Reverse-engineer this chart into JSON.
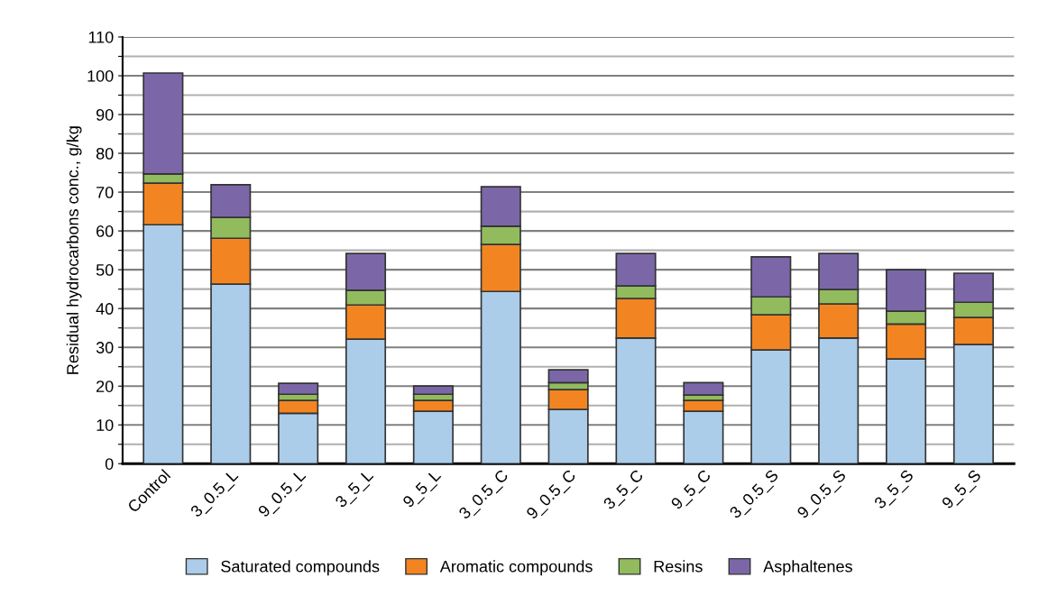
{
  "chart_data": {
    "type": "bar",
    "stacked": true,
    "ylabel": "Residual hydrocarbons conc., g/kg",
    "categories": [
      "Control",
      "3_0.5_L",
      "9_0.5_L",
      "3_5_L",
      "9_5_L",
      "3_0.5_C",
      "9_0.5_C",
      "3_5_C",
      "9_5_C",
      "3_0.5_S",
      "9_0.5_S",
      "3_5_S",
      "9_5_S"
    ],
    "series": [
      {
        "name": "Saturated compounds",
        "color": "#abcdea",
        "values": [
          61.6,
          46.3,
          13.0,
          32.1,
          13.5,
          44.4,
          14.0,
          32.4,
          13.5,
          29.3,
          32.4,
          27.0,
          30.7
        ]
      },
      {
        "name": "Aromatic compounds",
        "color": "#f28522",
        "values": [
          10.7,
          11.8,
          3.3,
          8.8,
          2.8,
          12.1,
          5.1,
          10.2,
          2.8,
          9.1,
          8.8,
          9.0,
          7.0
        ]
      },
      {
        "name": "Resins",
        "color": "#92bb5e",
        "values": [
          2.4,
          5.4,
          1.6,
          3.8,
          1.6,
          4.7,
          1.8,
          3.2,
          1.4,
          4.6,
          3.7,
          3.3,
          3.9
        ]
      },
      {
        "name": "Asphaltenes",
        "color": "#7b67a8",
        "values": [
          26.0,
          8.4,
          2.8,
          9.5,
          2.1,
          10.2,
          3.3,
          8.4,
          3.2,
          10.3,
          9.3,
          10.7,
          7.5
        ]
      }
    ],
    "ylim": [
      0,
      110
    ],
    "yticks": [
      0,
      {
        "value": 5,
        "label": null
      },
      10,
      {
        "value": 15,
        "label": null
      },
      20,
      {
        "value": 25,
        "label": null
      },
      30,
      {
        "value": 35,
        "label": null
      },
      40,
      {
        "value": 45,
        "label": null
      },
      50,
      {
        "value": 55,
        "label": null
      },
      60,
      {
        "value": 65,
        "label": null
      },
      70,
      {
        "value": 75,
        "label": null
      },
      80,
      {
        "value": 85,
        "label": null
      },
      90,
      {
        "value": 95,
        "label": null
      },
      100,
      {
        "value": 105,
        "label": null
      },
      110
    ],
    "grid": "y",
    "legend": "bottom"
  }
}
